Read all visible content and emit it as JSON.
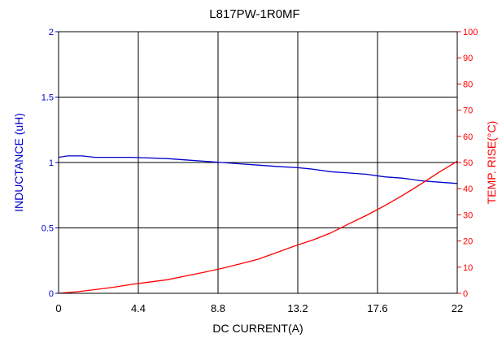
{
  "chart_data": {
    "type": "line",
    "title": "L817PW-1R0MF",
    "xlabel": "DC CURRENT(A)",
    "ylabel_left": "INDUCTANCE (uH)",
    "ylabel_right": "TEMP. RISE(°C)",
    "xlim": [
      0,
      22
    ],
    "ylim_left": [
      0,
      2
    ],
    "ylim_right": [
      0,
      100
    ],
    "x_ticks": [
      "0",
      "4.4",
      "8.8",
      "13.2",
      "17.6",
      "22"
    ],
    "y_left_ticks": [
      "0",
      "0.5",
      "1",
      "1.5",
      "2"
    ],
    "y_right_ticks": [
      "0",
      "10",
      "20",
      "30",
      "40",
      "50",
      "60",
      "70",
      "80",
      "90",
      "100"
    ],
    "grid": true,
    "colors": {
      "inductance": "#0000cc",
      "temp_rise": "#ff0000",
      "grid": "#000000"
    },
    "series": [
      {
        "axis": "left",
        "x": [
          0,
          0.5,
          1.3,
          2,
          4,
          6,
          7,
          8,
          9,
          10,
          11,
          12,
          13.2,
          14,
          15,
          16,
          17,
          18,
          19,
          20,
          21,
          22
        ],
        "values": [
          1.04,
          1.05,
          1.05,
          1.04,
          1.04,
          1.03,
          1.02,
          1.01,
          1.0,
          0.99,
          0.98,
          0.97,
          0.96,
          0.95,
          0.93,
          0.92,
          0.91,
          0.89,
          0.88,
          0.86,
          0.85,
          0.84
        ]
      },
      {
        "axis": "right",
        "x": [
          0,
          1,
          2,
          3,
          4,
          5,
          6,
          7,
          8,
          9,
          10,
          11,
          12,
          13,
          14,
          15,
          16,
          17,
          18,
          19,
          20,
          21,
          22
        ],
        "values": [
          0,
          0.6,
          1.4,
          2.3,
          3.4,
          4.3,
          5.2,
          6.6,
          8.0,
          9.5,
          11.2,
          13.0,
          15.5,
          18.0,
          20.3,
          23.0,
          26.5,
          29.8,
          33.5,
          37.5,
          41.8,
          46.3,
          50.5
        ]
      }
    ]
  }
}
